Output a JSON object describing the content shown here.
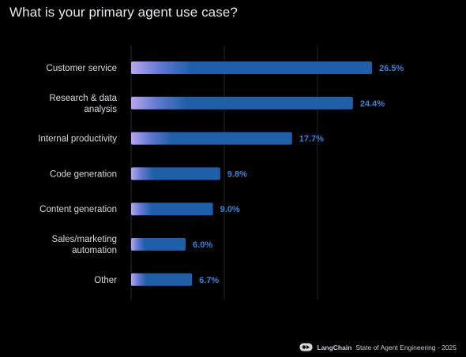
{
  "title": "What is your primary agent use case?",
  "footer": {
    "brand": "LangChain",
    "caption": "State of Agent Engineering - 2025",
    "logo_icon": "langchain-parrot-logo"
  },
  "colors": {
    "background": "#000000",
    "bar": "#1f5fa8",
    "bar_highlight": "#b7a6f0",
    "value_label": "#3b82d6",
    "category_label": "#d8d9df",
    "grid": "#2a2d33"
  },
  "chart_data": {
    "type": "bar",
    "orientation": "horizontal",
    "title": "What is your primary agent use case?",
    "categories": [
      [
        "Customer service"
      ],
      [
        "Research & data",
        "analysis"
      ],
      [
        "Internal productivity"
      ],
      [
        "Code generation"
      ],
      [
        "Content generation"
      ],
      [
        "Sales/marketing",
        "automation"
      ],
      [
        "Other"
      ]
    ],
    "values": [
      26.5,
      24.4,
      17.7,
      9.8,
      9.0,
      6.0,
      6.7
    ],
    "value_labels": [
      "26.5%",
      "24.4%",
      "17.7%",
      "9.8%",
      "9.0%",
      "6.0%",
      "6.7%"
    ],
    "xlim": [
      0,
      26.5
    ],
    "grid": true,
    "legend": "none"
  }
}
